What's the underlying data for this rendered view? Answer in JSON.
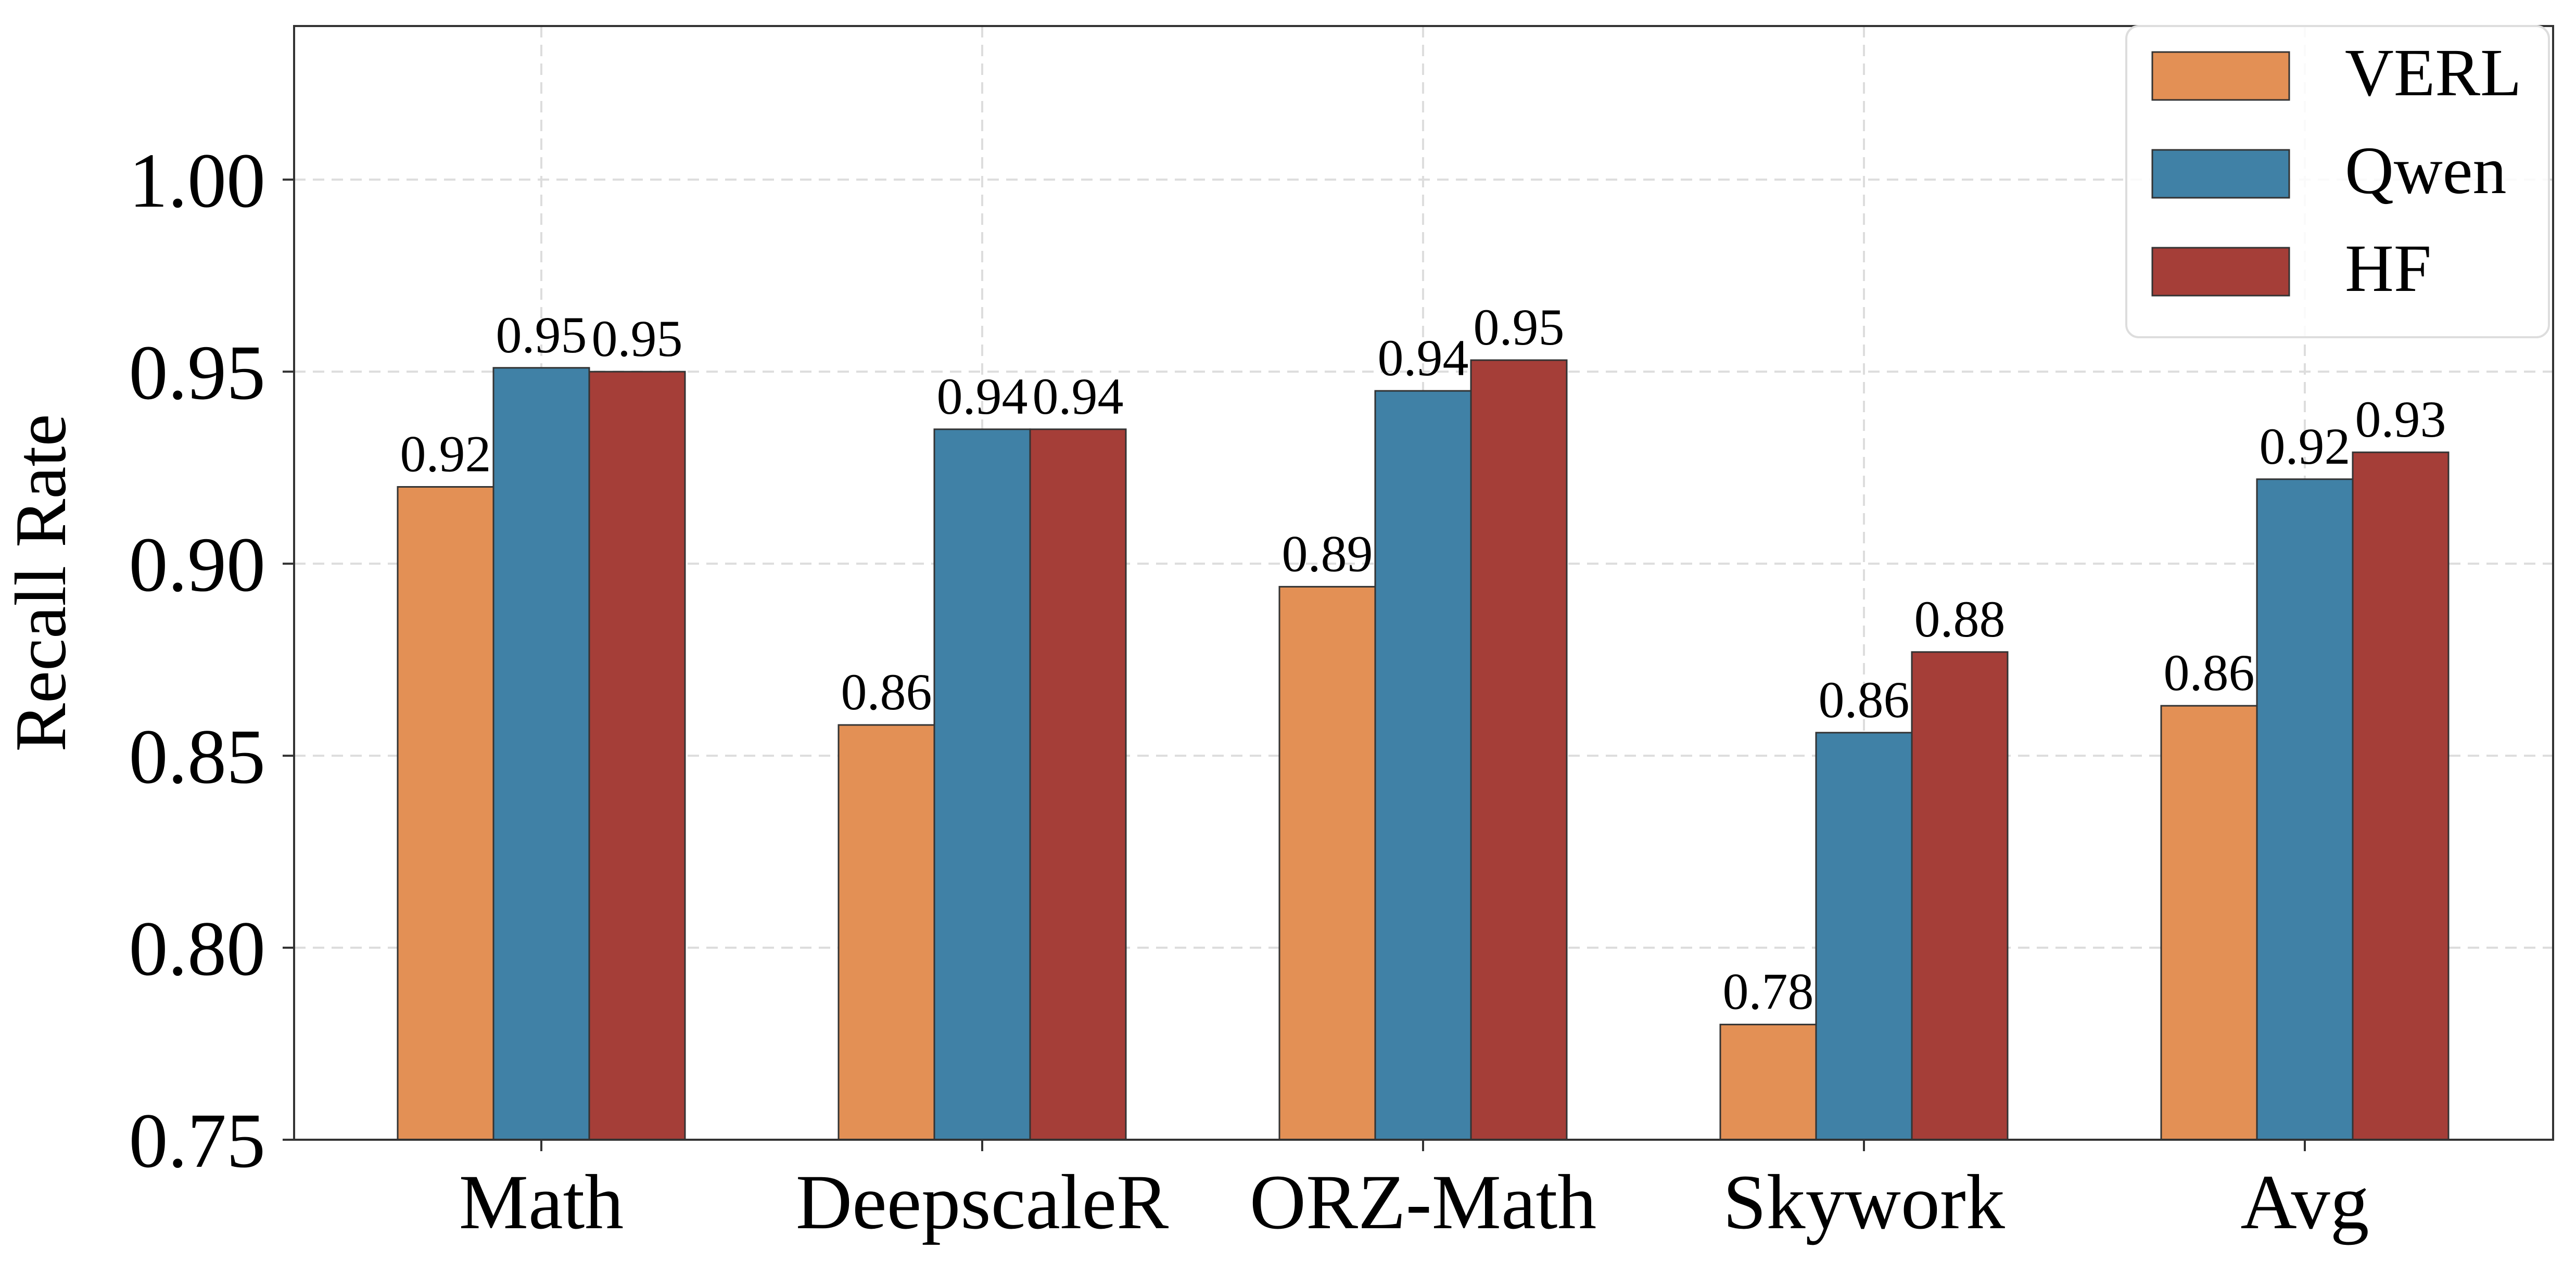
{
  "chart_data": {
    "type": "bar",
    "ylabel": "Recall Rate",
    "categories": [
      "Math",
      "DeepscaleR",
      "ORZ-Math",
      "Skywork",
      "Avg"
    ],
    "series": [
      {
        "name": "VERL",
        "color": "#E39055",
        "values": [
          0.92,
          0.858,
          0.894,
          0.78,
          0.863
        ]
      },
      {
        "name": "Qwen",
        "color": "#4081A6",
        "values": [
          0.951,
          0.935,
          0.945,
          0.856,
          0.922
        ]
      },
      {
        "name": "HF",
        "color": "#A53E38",
        "values": [
          0.95,
          0.935,
          0.953,
          0.877,
          0.929
        ]
      }
    ],
    "value_labels": [
      [
        "0.92",
        "0.86",
        "0.89",
        "0.78",
        "0.86"
      ],
      [
        "0.95",
        "0.94",
        "0.94",
        "0.86",
        "0.92"
      ],
      [
        "0.95",
        "0.94",
        "0.95",
        "0.88",
        "0.93"
      ]
    ],
    "ylim": [
      0.75,
      1.04
    ],
    "yticks": [
      "0.75",
      "0.80",
      "0.85",
      "0.90",
      "0.95",
      "1.00"
    ],
    "grid": true,
    "legend_position": "top-right"
  }
}
